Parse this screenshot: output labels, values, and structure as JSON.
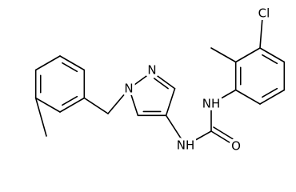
{
  "labels": [
    "Cl",
    "N",
    "N",
    "NH",
    "NH",
    "O"
  ]
}
